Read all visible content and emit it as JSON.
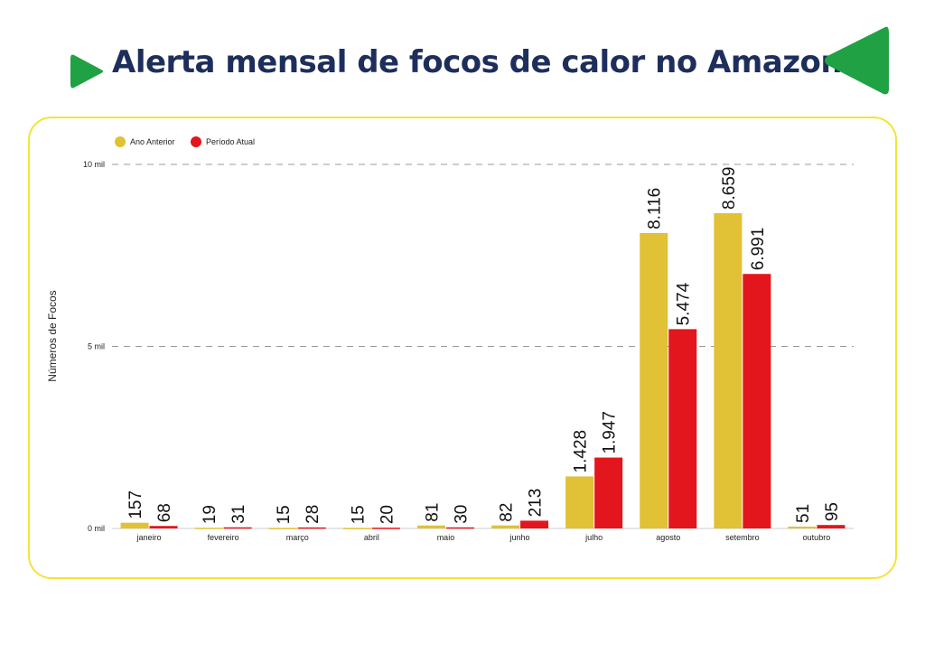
{
  "header": {
    "title": "Alerta mensal de focos de calor no Amazonas"
  },
  "colors": {
    "title": "#1e2e5c",
    "accent_green": "#1fa144",
    "panel_border": "#f2e43a",
    "previous_year": "#e1c135",
    "current_period": "#e2161c",
    "grid": "#999999"
  },
  "icons": [
    "triangle-right-icon",
    "triangle-left-icon"
  ],
  "chart_data": {
    "type": "bar",
    "title": "",
    "xlabel": "",
    "ylabel": "Números de Focos",
    "ylim": [
      0,
      10000
    ],
    "yticks": [
      {
        "value": 0,
        "label": "0 mil"
      },
      {
        "value": 5000,
        "label": "5 mil"
      },
      {
        "value": 10000,
        "label": "10 mil"
      }
    ],
    "grid": true,
    "legend_position": "top-left",
    "categories": [
      "janeiro",
      "fevereiro",
      "março",
      "abril",
      "maio",
      "junho",
      "julho",
      "agosto",
      "setembro",
      "outubro"
    ],
    "series": [
      {
        "name": "Ano Anterior",
        "color": "#e1c135",
        "values": [
          157,
          19,
          15,
          15,
          81,
          82,
          1428,
          8116,
          8659,
          51
        ],
        "labels": [
          "157",
          "19",
          "15",
          "15",
          "81",
          "82",
          "1.428",
          "8.116",
          "8.659",
          "51"
        ]
      },
      {
        "name": "Período Atual",
        "color": "#e2161c",
        "values": [
          68,
          31,
          28,
          20,
          30,
          213,
          1947,
          5474,
          6991,
          95
        ],
        "labels": [
          "68",
          "31",
          "28",
          "20",
          "30",
          "213",
          "1.947",
          "5.474",
          "6.991",
          "95"
        ]
      }
    ]
  }
}
